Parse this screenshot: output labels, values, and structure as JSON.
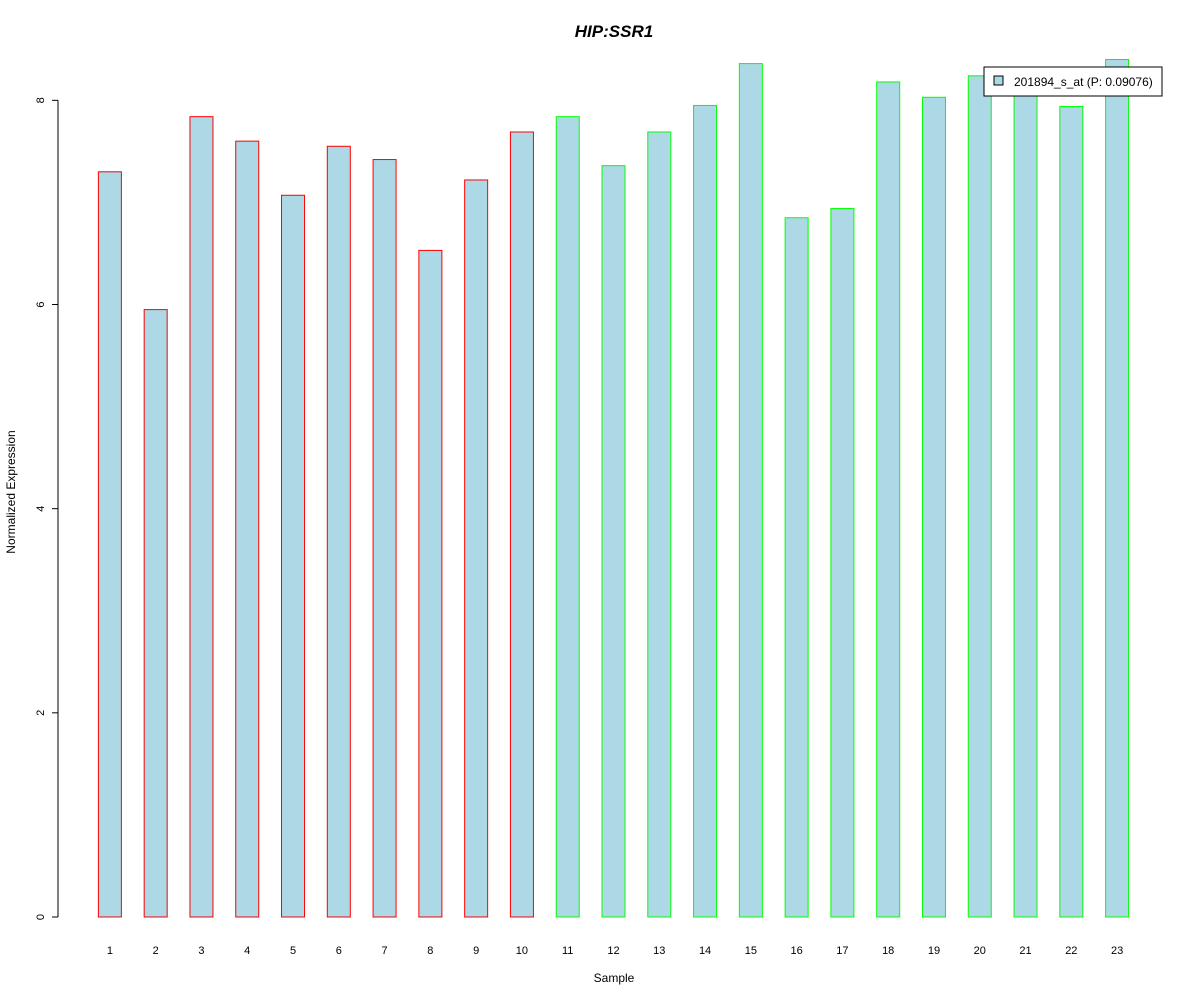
{
  "chart_data": {
    "type": "bar",
    "title": "HIP:SSR1",
    "title_color": "#0000CC",
    "xlabel": "Sample",
    "ylabel": "Normalized Expression",
    "categories": [
      "1",
      "2",
      "3",
      "4",
      "5",
      "6",
      "7",
      "8",
      "9",
      "10",
      "11",
      "12",
      "13",
      "14",
      "15",
      "16",
      "17",
      "18",
      "19",
      "20",
      "21",
      "22",
      "23"
    ],
    "series": [
      {
        "name": "201894_s_at (P: 0.09076)",
        "values": [
          7.3,
          5.95,
          7.84,
          7.6,
          7.07,
          7.55,
          7.42,
          6.53,
          7.22,
          7.69,
          7.84,
          7.36,
          7.69,
          7.95,
          8.36,
          6.85,
          6.94,
          8.18,
          8.03,
          8.24,
          8.09,
          7.94,
          8.4
        ]
      }
    ],
    "group_of_bar": [
      "red",
      "red",
      "red",
      "red",
      "red",
      "red",
      "red",
      "red",
      "red",
      "red",
      "green",
      "green",
      "green",
      "green",
      "green",
      "green",
      "green",
      "green",
      "green",
      "green",
      "green",
      "green",
      "green"
    ],
    "bar_fill": "#ADD8E6",
    "group_colors": {
      "red": "#FF0000",
      "green": "#00FF00"
    },
    "ylim": [
      0,
      8.4
    ],
    "yticks": [
      0,
      2,
      4,
      6,
      8
    ],
    "grid": false,
    "legend_position": "top-right"
  }
}
